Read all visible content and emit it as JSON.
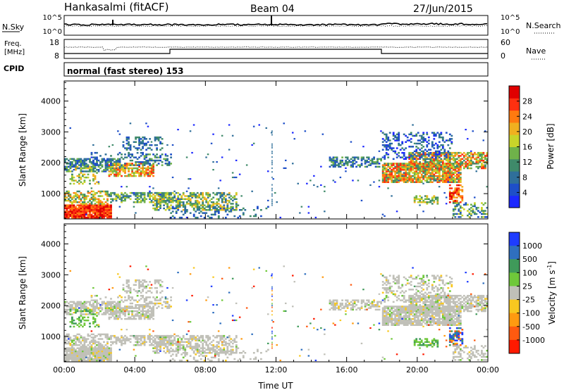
{
  "header": {
    "station": "Hankasalmi (fitACF)",
    "beam": "Beam 04",
    "date": "27/Jun/2015"
  },
  "aux_panels": {
    "noise_left_label": "N.Sky",
    "noise_right_label": "N.Search",
    "noise_ticks_left": [
      "10^5",
      "10^0"
    ],
    "noise_ticks_right": [
      "10^5",
      "10^0"
    ],
    "freq_label_line1": "Freq.",
    "freq_label_line2": "[MHz]",
    "freq_ticks": [
      "18",
      "8"
    ],
    "nave_label": "Nave",
    "nave_ticks": [
      "60",
      "0"
    ],
    "cpid_label": "CPID",
    "cpid_text": "normal (fast stereo) 153"
  },
  "colors": {
    "power_scale": [
      "#1c28ff",
      "#1e4fc8",
      "#2f6f9a",
      "#3f8a6a",
      "#6fb24a",
      "#c8d42a",
      "#f0b020",
      "#ff7a10",
      "#ff3010",
      "#e00000"
    ],
    "velocity_scale": [
      "#1e3cff",
      "#2f6fbf",
      "#3f9a5a",
      "#6fc83a",
      "#c0c0b8",
      "#f8c820",
      "#ff9a10",
      "#ff5a10",
      "#ff1a00"
    ],
    "ground_scatter": "#b8b8b0"
  },
  "chart_data": [
    {
      "type": "heatmap",
      "name": "Power",
      "xlabel": "Time UT",
      "ylabel": "Slant Range [km]",
      "x_ticks": [
        "00:00",
        "04:00",
        "08:00",
        "12:00",
        "16:00",
        "20:00",
        "00:00"
      ],
      "xlim_hours": [
        0,
        24
      ],
      "y_ticks": [
        1000,
        2000,
        3000,
        4000
      ],
      "ylim": [
        180,
        4650
      ],
      "colorbar_label": "Power [dB]",
      "colorbar_ticks": [
        "4",
        "8",
        "12",
        "16",
        "20",
        "24",
        "28"
      ],
      "colorbar_range": [
        0,
        32
      ]
    },
    {
      "type": "heatmap",
      "name": "Velocity",
      "xlabel": "Time UT",
      "ylabel": "Slant Range [km]",
      "x_ticks": [
        "00:00",
        "04:00",
        "08:00",
        "12:00",
        "16:00",
        "20:00",
        "00:00"
      ],
      "xlim_hours": [
        0,
        24
      ],
      "y_ticks": [
        1000,
        2000,
        3000,
        4000
      ],
      "ylim": [
        180,
        4650
      ],
      "colorbar_label": "Velocity [m s^-1]",
      "colorbar_ticks": [
        "1000",
        "500",
        "100",
        "25",
        "-25",
        "-100",
        "-500",
        "-1000"
      ]
    }
  ]
}
